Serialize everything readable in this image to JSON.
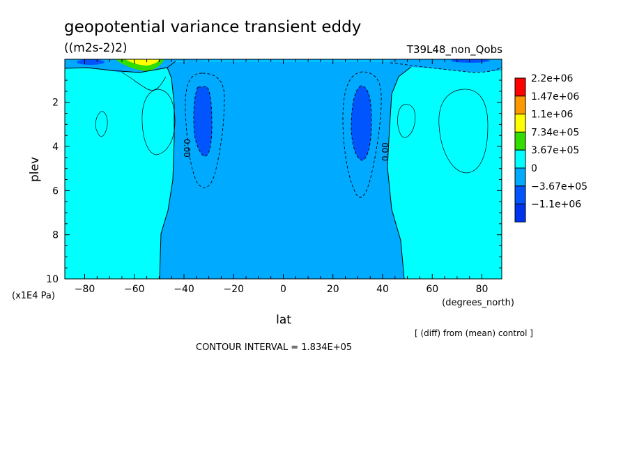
{
  "chart_data": {
    "type": "heatmap",
    "title": "geopotential variance transient eddy",
    "units": "((m2s-2)2)",
    "run_label": "T39L48_non_Qobs",
    "xlabel": "lat",
    "x_units": "(degrees_north)",
    "ylabel": "plev",
    "y_units": "(x1E4 Pa)",
    "xlim": [
      -88,
      88
    ],
    "ylim": [
      10,
      0.05
    ],
    "y_inverted": true,
    "x_ticks": [
      -80,
      -60,
      -40,
      -20,
      0,
      20,
      40,
      60,
      80
    ],
    "y_ticks": [
      2,
      4,
      6,
      8,
      10
    ],
    "contour_interval_text": "CONTOUR INTERVAL = 1.834E+05",
    "note": "[ (diff) from (mean) control ]",
    "contour_labels": [
      "0.00",
      "0.00"
    ],
    "colorbar": {
      "levels": [
        "2.2e+06",
        "1.47e+06",
        "1.1e+06",
        "7.34e+05",
        "3.67e+05",
        "0",
        "-3.67e+05",
        "-1.1e+06"
      ],
      "colors": [
        "#ff0000",
        "#ff9900",
        "#ffff00",
        "#33dd00",
        "#00ffff",
        "#00aaff",
        "#0055ff",
        "#0033ee"
      ]
    },
    "fill_colors": {
      "positive": "#00ffff",
      "negative": "#00aaff",
      "strong_negative": "#0055ff",
      "green": "#33dd00",
      "yellow": "#ffff00"
    }
  }
}
